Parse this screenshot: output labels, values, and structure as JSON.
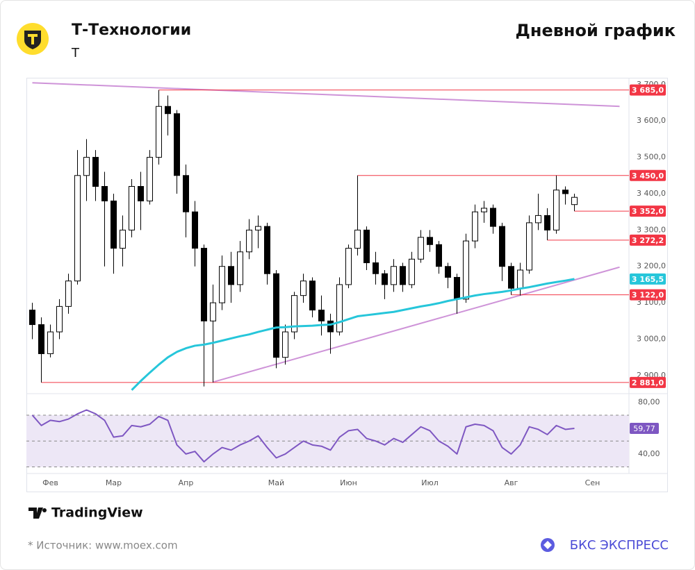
{
  "header": {
    "title": "Т-Технологии",
    "ticker": "Т",
    "chart_kind": "Дневной график"
  },
  "footer": {
    "brand": "TradingView",
    "source": "* Источник: www.moex.com",
    "publisher": "БКС ЭКСПРЕСС"
  },
  "chart_data": {
    "type": "candlestick",
    "categories": [
      null,
      null,
      "Фев",
      null,
      null,
      null,
      null,
      null,
      null,
      "Мар",
      null,
      null,
      null,
      null,
      null,
      null,
      null,
      "Апр",
      null,
      null,
      null,
      null,
      null,
      null,
      null,
      null,
      null,
      "Май",
      null,
      null,
      null,
      null,
      null,
      null,
      null,
      "Июн",
      null,
      null,
      null,
      null,
      null,
      null,
      null,
      null,
      "Июл",
      null,
      null,
      null,
      null,
      null,
      null,
      null,
      null,
      "Авг",
      null,
      null,
      null,
      null,
      null,
      null,
      null,
      null,
      "Сен",
      null,
      null,
      null
    ],
    "open": [
      3080,
      3040,
      2960,
      3020,
      3090,
      3160,
      3450,
      3500,
      3420,
      3380,
      3250,
      3300,
      3420,
      3380,
      3500,
      3640,
      3620,
      3450,
      3350,
      3250,
      3050,
      3100,
      3200,
      3150,
      3240,
      3300,
      3310,
      3180,
      2950,
      3020,
      3120,
      3160,
      3080,
      3050,
      3020,
      3150,
      3250,
      3300,
      3210,
      3180,
      3150,
      3200,
      3150,
      3220,
      3280,
      3260,
      3200,
      3170,
      3110,
      3270,
      3350,
      3360,
      3310,
      3200,
      3140,
      3190,
      3320,
      3340,
      3300,
      3410,
      3370,
      null,
      null,
      null,
      null,
      null
    ],
    "high": [
      3100,
      3060,
      3040,
      3110,
      3180,
      3520,
      3550,
      3520,
      3460,
      3400,
      3340,
      3440,
      3460,
      3520,
      3685,
      3670,
      3630,
      3480,
      3380,
      3260,
      3150,
      3230,
      3240,
      3270,
      3330,
      3340,
      3320,
      3190,
      3040,
      3130,
      3180,
      3170,
      3120,
      3070,
      3170,
      3260,
      3450,
      3310,
      3240,
      3190,
      3220,
      3210,
      3240,
      3300,
      3300,
      3270,
      3210,
      3180,
      3290,
      3370,
      3380,
      3370,
      3320,
      3210,
      3210,
      3340,
      3400,
      3360,
      3450,
      3420,
      3400,
      null,
      null,
      null,
      null,
      null
    ],
    "low": [
      3000,
      2881,
      2950,
      3000,
      3070,
      3150,
      3380,
      3380,
      3200,
      3180,
      3200,
      3280,
      3300,
      3370,
      3480,
      3560,
      3400,
      3280,
      3200,
      2870,
      2881,
      3080,
      3100,
      3130,
      3220,
      3250,
      3150,
      2920,
      2930,
      3000,
      3100,
      3060,
      3010,
      2960,
      3010,
      3140,
      3230,
      3190,
      3150,
      3110,
      3130,
      3130,
      3140,
      3210,
      3240,
      3180,
      3140,
      3070,
      3100,
      3250,
      3320,
      3290,
      3160,
      3122,
      3120,
      3180,
      3300,
      3272.2,
      3290,
      3370,
      3352,
      null,
      null,
      null,
      null,
      null
    ],
    "close": [
      3040,
      2960,
      3020,
      3090,
      3160,
      3450,
      3500,
      3420,
      3380,
      3250,
      3300,
      3420,
      3380,
      3500,
      3640,
      3620,
      3450,
      3350,
      3250,
      3050,
      3100,
      3200,
      3150,
      3240,
      3300,
      3310,
      3180,
      2950,
      3020,
      3120,
      3160,
      3080,
      3050,
      3020,
      3150,
      3250,
      3300,
      3210,
      3180,
      3150,
      3200,
      3150,
      3220,
      3280,
      3260,
      3200,
      3170,
      3110,
      3270,
      3350,
      3360,
      3310,
      3200,
      3140,
      3190,
      3320,
      3340,
      3300,
      3410,
      3400,
      3390,
      null,
      null,
      null,
      null,
      null
    ],
    "up_color": "#ffffff",
    "down_color": "#000000",
    "ylim": [
      2854,
      3713
    ],
    "yticks": [
      {
        "value": 2900,
        "label": "2 900,0"
      },
      {
        "value": 3000,
        "label": "3 000,0"
      },
      {
        "value": 3100,
        "label": "3 100,0"
      },
      {
        "value": 3200,
        "label": "3 200,0"
      },
      {
        "value": 3300,
        "label": "3 300,0"
      },
      {
        "value": 3400,
        "label": "3 400,0"
      },
      {
        "value": 3500,
        "label": "3 500,0"
      },
      {
        "value": 3600,
        "label": "3 600,0"
      },
      {
        "value": 3700,
        "label": "3 700,0"
      }
    ],
    "ma": {
      "color": "#26c6da",
      "values": [
        null,
        null,
        null,
        null,
        null,
        null,
        null,
        null,
        null,
        null,
        null,
        2860,
        2885,
        2908,
        2930,
        2950,
        2965,
        2975,
        2982,
        2985,
        2990,
        2996,
        3002,
        3008,
        3013,
        3020,
        3026,
        3032,
        3033,
        3035,
        3036,
        3037,
        3039,
        3040,
        3047,
        3055,
        3063,
        3066,
        3069,
        3072,
        3075,
        3080,
        3085,
        3090,
        3094,
        3099,
        3105,
        3110,
        3115,
        3120,
        3124,
        3127,
        3130,
        3134,
        3139,
        3143,
        3148,
        3153,
        3157,
        3161,
        3165.5,
        null,
        null,
        null,
        null,
        null
      ]
    },
    "levels": [
      {
        "value": 3685,
        "label": "3 685,0",
        "color": "#f23645"
      },
      {
        "value": 3450,
        "label": "3 450,0",
        "color": "#f23645"
      },
      {
        "value": 3352,
        "label": "3 352,0",
        "color": "#f23645"
      },
      {
        "value": 3272.2,
        "label": "3 272,2",
        "color": "#f23645"
      },
      {
        "value": 3165.5,
        "label": "3 165,5",
        "color": "#26c6da"
      },
      {
        "value": 3122,
        "label": "3 122,0",
        "color": "#f23645"
      },
      {
        "value": 2881,
        "label": "2 881,0",
        "color": "#f23645"
      }
    ],
    "trendlines": [
      {
        "x": [
          0,
          65
        ],
        "values": [
          3705,
          3640
        ],
        "color": "#ce93d8"
      },
      {
        "x": [
          20,
          65
        ],
        "values": [
          2882,
          3198
        ],
        "color": "#ce93d8"
      }
    ],
    "rsi": {
      "color": "#7e57c2",
      "band_color": "#ede7f6",
      "values": [
        70,
        62,
        66,
        65,
        67,
        71,
        74,
        71,
        66,
        53,
        54,
        62,
        61,
        63,
        69,
        66,
        47,
        40,
        42,
        34,
        40,
        45,
        43,
        47,
        50,
        54,
        45,
        37,
        40,
        45,
        50,
        47,
        46,
        43,
        53,
        58,
        59,
        52,
        50,
        47,
        52,
        49,
        55,
        61,
        58,
        50,
        46,
        40,
        61,
        63,
        62,
        58,
        45,
        40,
        47,
        61,
        59,
        55,
        62,
        59,
        59.77,
        null,
        null,
        null,
        null,
        null
      ],
      "last_value_label": "59,77",
      "ylim": [
        26,
        85
      ],
      "yticks": [
        {
          "value": 40,
          "label": "40,00"
        },
        {
          "value": 80,
          "label": "80,00"
        }
      ],
      "bands": [
        30,
        50,
        70
      ]
    }
  }
}
